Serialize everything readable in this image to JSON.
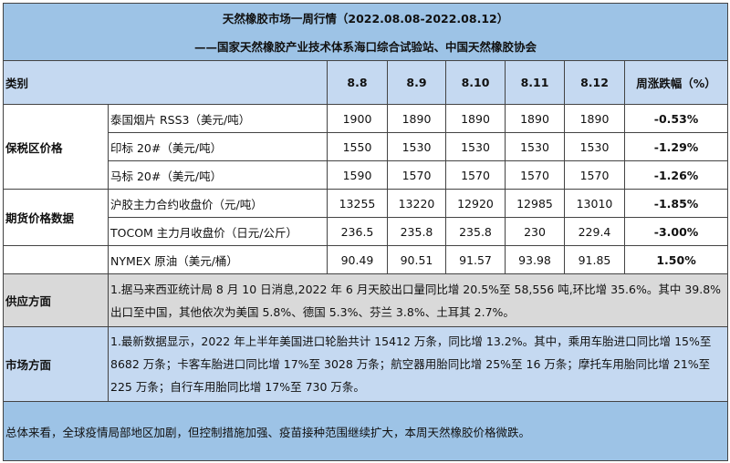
{
  "title": "天然橡胶市场一周行情（2022.08.08-2022.08.12）",
  "subtitle": "——国家天然橡胶产业技术体系海口综合试验站、中国天然橡胶协会",
  "header": {
    "category": "类别",
    "dates": [
      "8.8",
      "8.9",
      "8.10",
      "8.11",
      "8.12"
    ],
    "change": "周涨跌幅（%）"
  },
  "groups": {
    "bonded": "保税区价格",
    "futures": "期货价格数据",
    "supply": "供应方面",
    "market": "市场方面"
  },
  "rows": [
    {
      "label": "泰国烟片 RSS3（美元/吨）",
      "values": [
        "1900",
        "1890",
        "1890",
        "1890",
        "1890"
      ],
      "change": "-0.53%"
    },
    {
      "label": "印标 20#（美元/吨）",
      "values": [
        "1550",
        "1530",
        "1530",
        "1530",
        "1530"
      ],
      "change": "-1.29%"
    },
    {
      "label": "马标 20#（美元/吨）",
      "values": [
        "1590",
        "1570",
        "1570",
        "1570",
        "1570"
      ],
      "change": "-1.26%"
    },
    {
      "label": "沪胶主力合约收盘价（元/吨）",
      "values": [
        "13255",
        "13220",
        "12920",
        "12985",
        "13010"
      ],
      "change": "-1.85%"
    },
    {
      "label": "TOCOM 主力月收盘价（日元/公斤）",
      "values": [
        "236.5",
        "235.8",
        "235.8",
        "230",
        "229.4"
      ],
      "change": "-3.00%"
    },
    {
      "label": "NYMEX 原油（美元/桶）",
      "values": [
        "90.49",
        "90.51",
        "91.57",
        "93.98",
        "91.85"
      ],
      "change": "1.50%"
    }
  ],
  "supply_text": "1.据马来西亚统计局 8 月 10 日消息,2022 年 6 月天胶出口量同比增 20.5%至 58,556 吨,环比增 35.6%。其中 39.8%出口至中国，其他依次为美国 5.8%、德国 5.3%、芬兰 3.8%、土耳其 2.7%。",
  "market_text": "1.最新数据显示，2022 年上半年美国进口轮胎共计 15412 万条，同比增 13.2%。其中，乘用车胎进口同比增 15%至 8682 万条；卡客车胎进口同比增 17%至 3028 万条；航空器用胎同比增 25%至 16 万条；摩托车用胎同比增 21%至 225 万条；自行车用胎同比增 17%至 730 万条。",
  "summary_text": "总体来看，全球疫情局部地区加剧，但控制措施加强、疫苗接种范围继续扩大，本周天然橡胶价格微跌。",
  "colors": {
    "title_bg": "#9dc3e6",
    "header_bg": "#c5d9f1",
    "supply_bg": "#d9d9d9"
  }
}
